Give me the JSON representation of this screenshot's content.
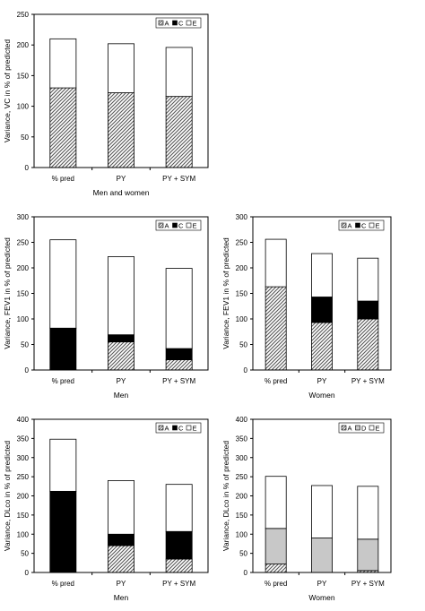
{
  "chart_data": [
    {
      "type": "bar",
      "stacked": true,
      "categories": [
        "% pred",
        "PY",
        "PY + SYM"
      ],
      "xlabel": "Men and women",
      "ylabel": "Variance, VC in % of predicted",
      "ylim": [
        0,
        250
      ],
      "yticks": [
        0,
        50,
        100,
        150,
        200,
        250
      ],
      "grid": false,
      "legend": "top-right",
      "series": [
        {
          "name": "A",
          "pattern": "hatch",
          "values": [
            130,
            122,
            116
          ]
        },
        {
          "name": "C",
          "pattern": "black",
          "values": [
            0,
            0,
            0
          ]
        },
        {
          "name": "E",
          "pattern": "white",
          "values": [
            80,
            80,
            80
          ]
        }
      ]
    },
    {
      "type": "bar",
      "stacked": true,
      "categories": [
        "% pred",
        "PY",
        "PY + SYM"
      ],
      "xlabel": "Men",
      "ylabel": "Variance, FEV1 in % of predicted",
      "ylim": [
        0,
        300
      ],
      "yticks": [
        0,
        50,
        100,
        150,
        200,
        250,
        300
      ],
      "grid": false,
      "legend": "top-right",
      "series": [
        {
          "name": "A",
          "pattern": "hatch",
          "values": [
            0,
            55,
            20
          ]
        },
        {
          "name": "C",
          "pattern": "black",
          "values": [
            82,
            14,
            22
          ]
        },
        {
          "name": "E",
          "pattern": "white",
          "values": [
            173,
            153,
            157
          ]
        }
      ]
    },
    {
      "type": "bar",
      "stacked": true,
      "categories": [
        "% pred",
        "PY",
        "PY + SYM"
      ],
      "xlabel": "Women",
      "ylabel": "Variance, FEV1 in % of predicted",
      "ylim": [
        0,
        300
      ],
      "yticks": [
        0,
        50,
        100,
        150,
        200,
        250,
        300
      ],
      "grid": false,
      "legend": "top-right",
      "series": [
        {
          "name": "A",
          "pattern": "hatch",
          "values": [
            163,
            93,
            100
          ]
        },
        {
          "name": "C",
          "pattern": "black",
          "values": [
            0,
            50,
            35
          ]
        },
        {
          "name": "E",
          "pattern": "white",
          "values": [
            93,
            85,
            84
          ]
        }
      ]
    },
    {
      "type": "bar",
      "stacked": true,
      "categories": [
        "% pred",
        "PY",
        "PY + SYM"
      ],
      "xlabel": "Men",
      "ylabel": "Variance, DLco in % of predicted",
      "ylim": [
        0,
        400
      ],
      "yticks": [
        0,
        50,
        100,
        150,
        200,
        250,
        300,
        350,
        400
      ],
      "grid": false,
      "legend": "top-right",
      "series": [
        {
          "name": "A",
          "pattern": "hatch",
          "values": [
            0,
            70,
            35
          ]
        },
        {
          "name": "C",
          "pattern": "black",
          "values": [
            212,
            30,
            72
          ]
        },
        {
          "name": "E",
          "pattern": "white",
          "values": [
            136,
            140,
            123
          ]
        }
      ]
    },
    {
      "type": "bar",
      "stacked": true,
      "categories": [
        "% pred",
        "PY",
        "PY + SYM"
      ],
      "xlabel": "Women",
      "ylabel": "Variance, DLco in % of predicted",
      "ylim": [
        0,
        400
      ],
      "yticks": [
        0,
        50,
        100,
        150,
        200,
        250,
        300,
        350,
        400
      ],
      "grid": false,
      "legend": "top-right",
      "series": [
        {
          "name": "A",
          "pattern": "hatch",
          "values": [
            22,
            0,
            5
          ]
        },
        {
          "name": "D",
          "pattern": "gray",
          "values": [
            93,
            90,
            82
          ]
        },
        {
          "name": "E",
          "pattern": "white",
          "values": [
            136,
            137,
            138
          ]
        }
      ]
    }
  ]
}
